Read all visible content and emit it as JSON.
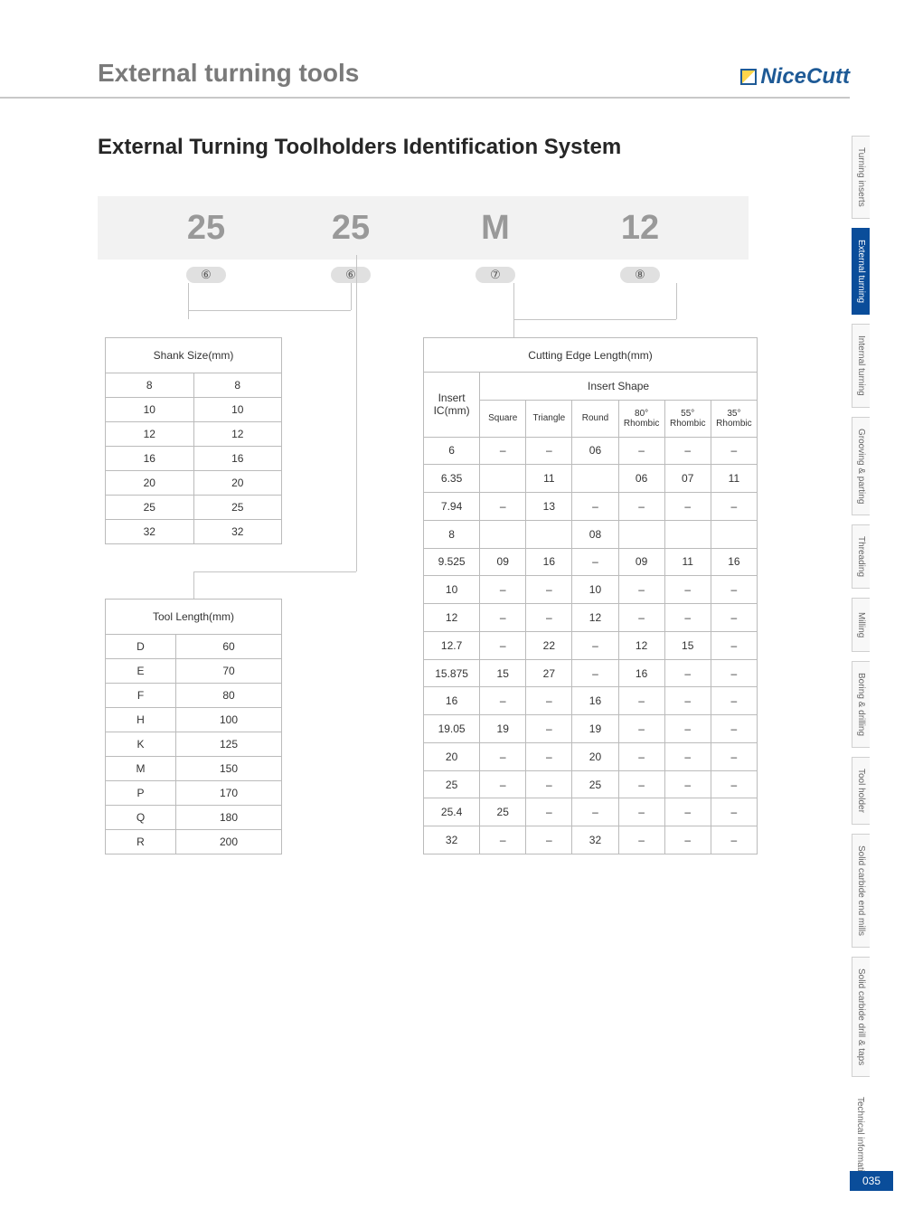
{
  "header": {
    "title": "External turning tools",
    "brand": "NiceCutt"
  },
  "subtitle": "External Turning Toolholders Identification System",
  "code": {
    "slots": [
      "25",
      "25",
      "M",
      "12"
    ],
    "indicators": [
      "⑥",
      "⑥",
      "⑦",
      "⑧"
    ]
  },
  "shank": {
    "title": "Shank Size(mm)",
    "rows": [
      [
        "8",
        "8"
      ],
      [
        "10",
        "10"
      ],
      [
        "12",
        "12"
      ],
      [
        "16",
        "16"
      ],
      [
        "20",
        "20"
      ],
      [
        "25",
        "25"
      ],
      [
        "32",
        "32"
      ]
    ]
  },
  "tool": {
    "title": "Tool Length(mm)",
    "rows": [
      [
        "D",
        "60"
      ],
      [
        "E",
        "70"
      ],
      [
        "F",
        "80"
      ],
      [
        "H",
        "100"
      ],
      [
        "K",
        "125"
      ],
      [
        "M",
        "150"
      ],
      [
        "P",
        "170"
      ],
      [
        "Q",
        "180"
      ],
      [
        "R",
        "200"
      ]
    ]
  },
  "cutting": {
    "title": "Cutting Edge Length(mm)",
    "rowhead": "Insert IC(mm)",
    "shapehead": "Insert Shape",
    "cols": [
      "Square",
      "Triangle",
      "Round",
      "80° Rhombic",
      "55° Rhombic",
      "35° Rhombic"
    ],
    "rows": [
      [
        "6",
        "–",
        "–",
        "06",
        "–",
        "–",
        "–"
      ],
      [
        "6.35",
        "",
        "11",
        "",
        "06",
        "07",
        "11"
      ],
      [
        "7.94",
        "–",
        "13",
        "–",
        "–",
        "–",
        "–"
      ],
      [
        "8",
        "",
        "",
        "08",
        "",
        "",
        ""
      ],
      [
        "9.525",
        "09",
        "16",
        "–",
        "09",
        "11",
        "16"
      ],
      [
        "10",
        "–",
        "–",
        "10",
        "–",
        "–",
        "–"
      ],
      [
        "12",
        "–",
        "–",
        "12",
        "–",
        "–",
        "–"
      ],
      [
        "12.7",
        "–",
        "22",
        "–",
        "12",
        "15",
        "–"
      ],
      [
        "15.875",
        "15",
        "27",
        "–",
        "16",
        "–",
        "–"
      ],
      [
        "16",
        "–",
        "–",
        "16",
        "–",
        "–",
        "–"
      ],
      [
        "19.05",
        "19",
        "–",
        "19",
        "–",
        "–",
        "–"
      ],
      [
        "20",
        "–",
        "–",
        "20",
        "–",
        "–",
        "–"
      ],
      [
        "25",
        "–",
        "–",
        "25",
        "–",
        "–",
        "–"
      ],
      [
        "25.4",
        "25",
        "–",
        "–",
        "–",
        "–",
        "–"
      ],
      [
        "32",
        "–",
        "–",
        "32",
        "–",
        "–",
        "–"
      ]
    ]
  },
  "sidebar": [
    "Turning inserts",
    "External turning",
    "Internal turning",
    "Grooving & parting",
    "Threading",
    "Milling",
    "Boring & drilling",
    "Tool holder",
    "Solid carbide end mills",
    "Solid carbide drill & taps",
    "Technical information"
  ],
  "pagenum": "035",
  "colors": {
    "accent": "#0a4d9a",
    "muted": "#999",
    "border": "#bbb",
    "bg": "#f2f2f2"
  }
}
